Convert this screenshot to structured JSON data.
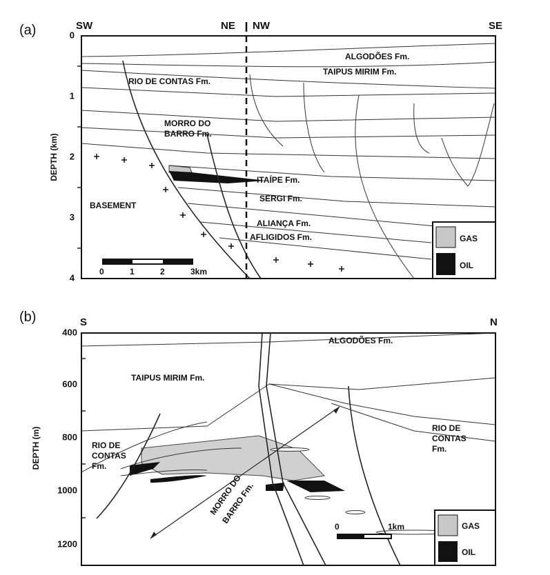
{
  "panels": [
    {
      "label": "(a)",
      "directions": [
        "SW",
        "NE",
        "NW",
        "SE"
      ],
      "axis_title": "DEPTH (km)",
      "ticks": [
        "0",
        "1",
        "2",
        "3",
        "4"
      ],
      "formations": [
        "ALGODÕES Fm.",
        "TAIPUS MIRIM Fm.",
        "RIO DE CONTAS Fm.",
        "MORRO DO",
        "BARRO Fm.",
        "ITAÍPE Fm.",
        "BASEMENT",
        "SERGI Fm.",
        "ALIANÇA Fm.",
        "AFLIGIDOS Fm."
      ],
      "scale": [
        "0",
        "1",
        "2",
        "3km"
      ],
      "legend": [
        "GAS",
        "OIL"
      ]
    },
    {
      "label": "(b)",
      "directions": [
        "S",
        "N"
      ],
      "axis_title": "DEPTH (m)",
      "ticks": [
        "400",
        "600",
        "800",
        "1000",
        "1200"
      ],
      "formations": [
        "ALGODÕES Fm.",
        "TAIPUS MIRIM Fm.",
        "RIO DE",
        "CONTAS",
        "Fm.",
        "RIO DE",
        "CONTAS",
        "Fm.",
        "MORRO DO",
        "BARRO Fm."
      ],
      "scale": [
        "0",
        "1km"
      ],
      "legend": [
        "GAS",
        "OIL"
      ]
    }
  ]
}
